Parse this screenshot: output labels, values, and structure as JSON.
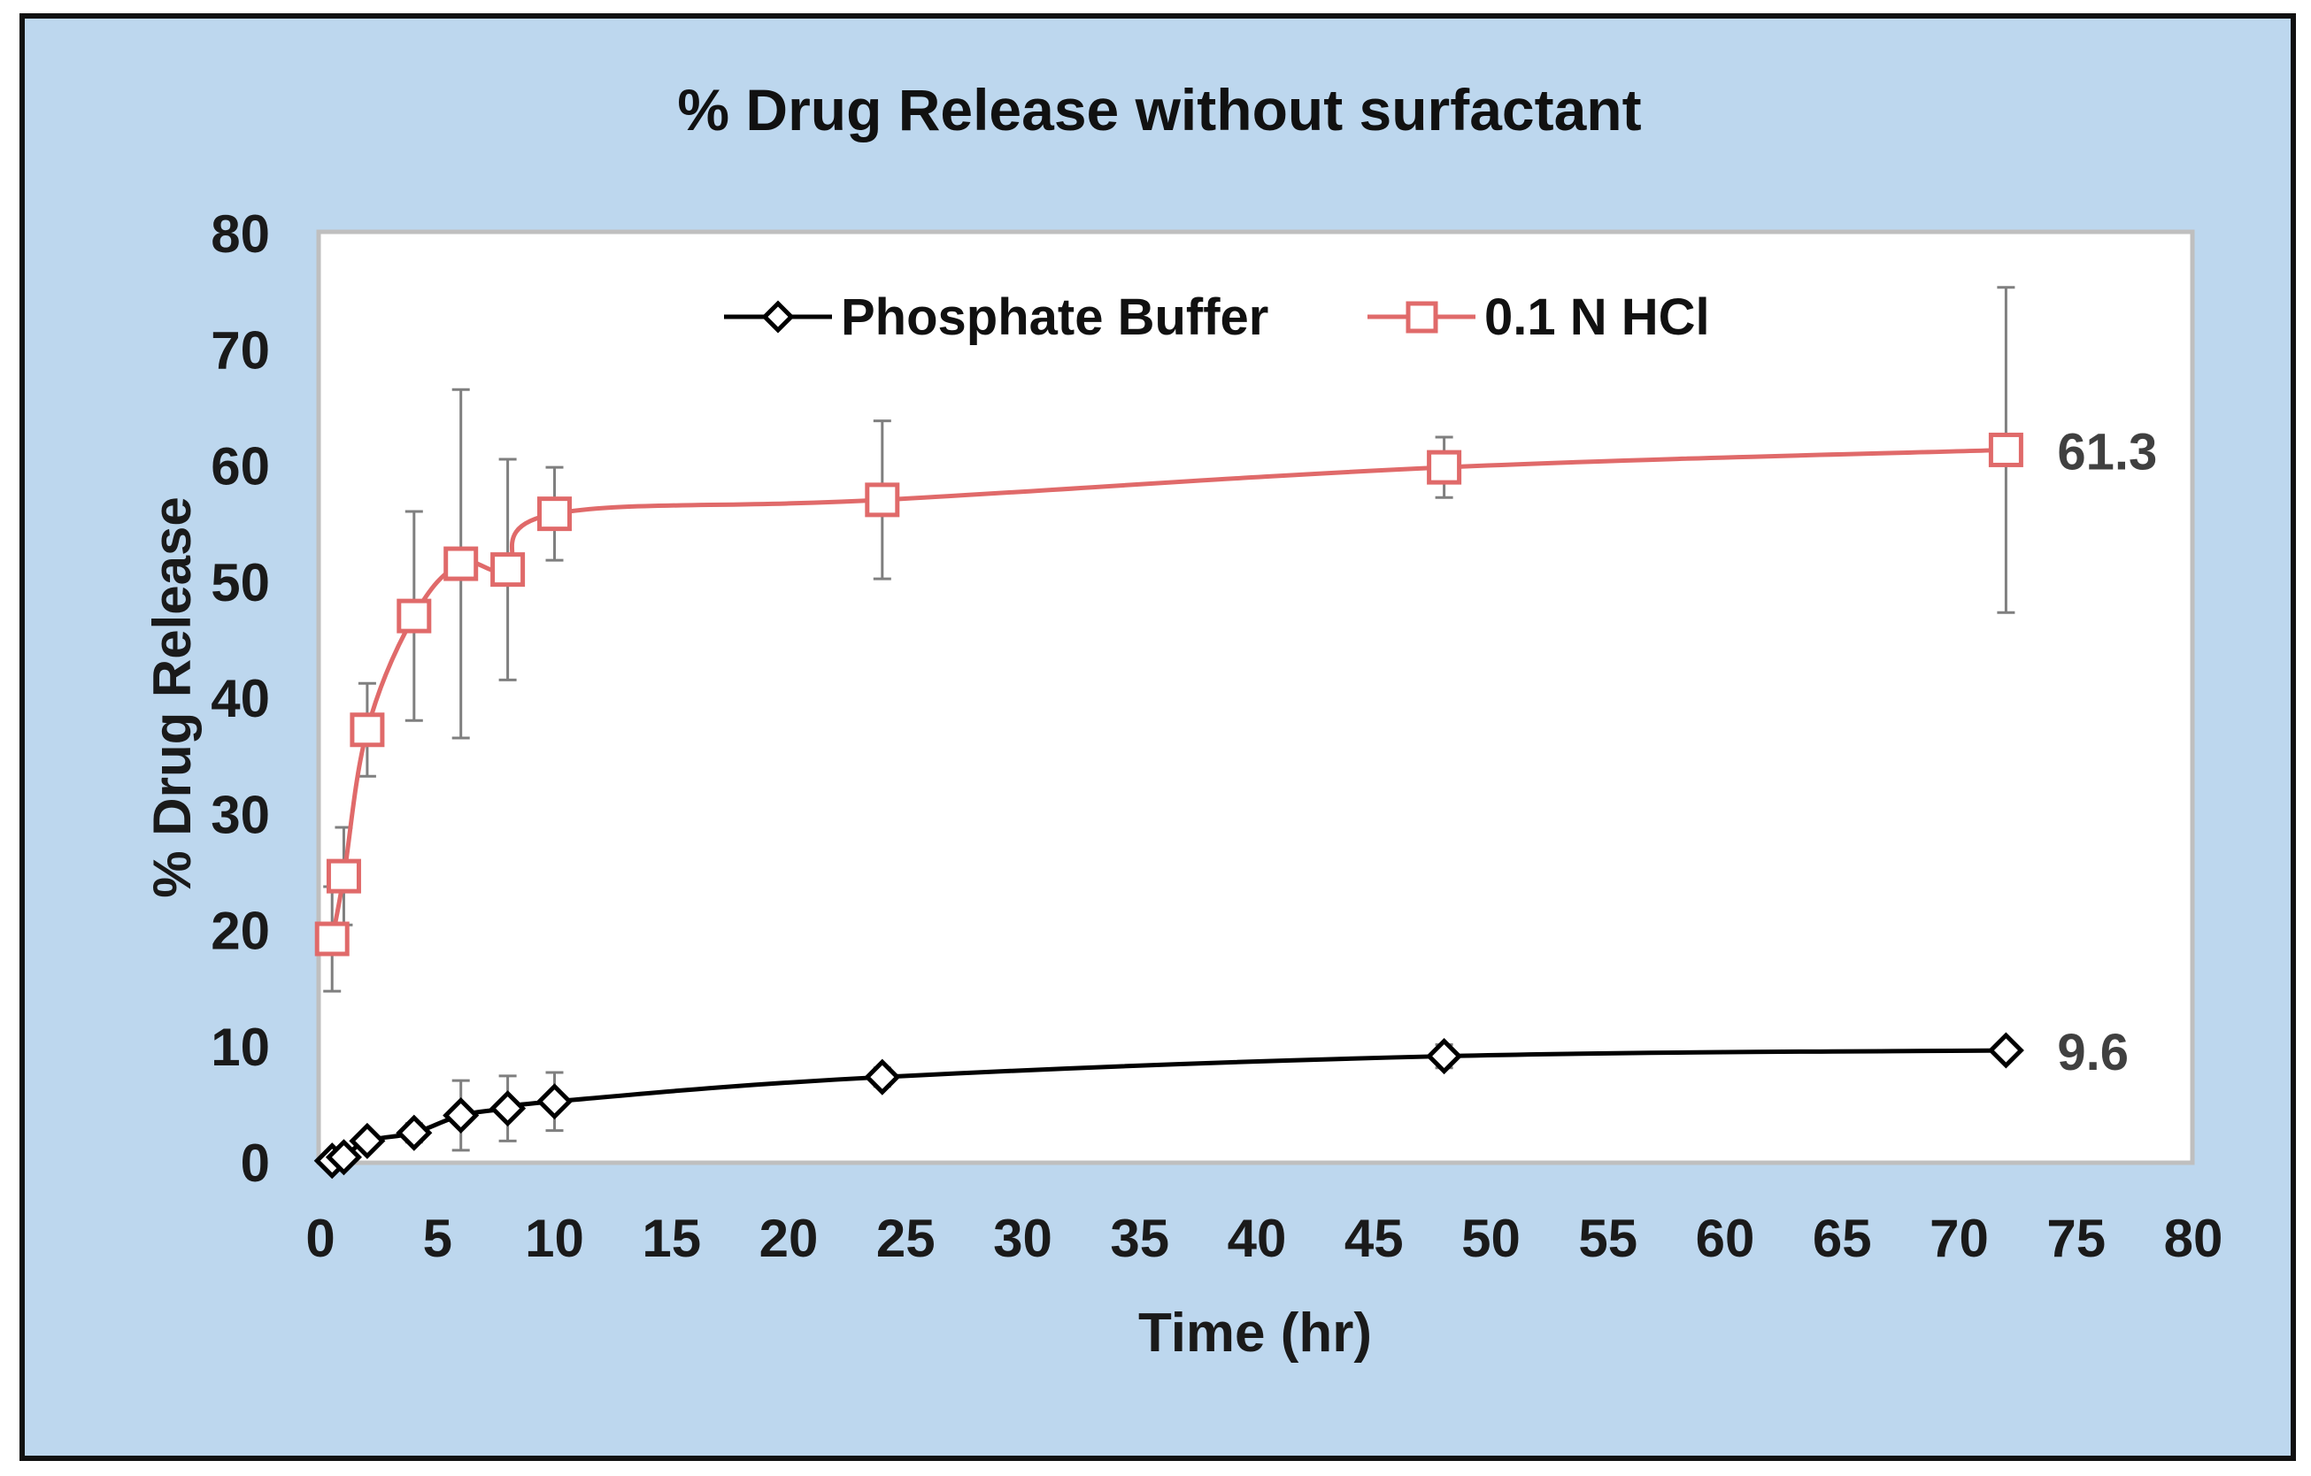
{
  "chart_data": {
    "type": "line",
    "title": "% Drug Release without surfactant",
    "xlabel": "Time (hr)",
    "ylabel": "% Drug Release",
    "xlim": [
      0,
      80
    ],
    "ylim": [
      0,
      80
    ],
    "xticks": [
      0,
      5,
      10,
      15,
      20,
      25,
      30,
      35,
      40,
      45,
      50,
      55,
      60,
      65,
      70,
      75,
      80
    ],
    "yticks": [
      0,
      10,
      20,
      30,
      40,
      50,
      60,
      70,
      80
    ],
    "grid": false,
    "legend_position": "top-center",
    "series": [
      {
        "name": "Phosphate Buffer",
        "marker": "diamond",
        "color": "#000000",
        "x": [
          0.5,
          1,
          2,
          4,
          6,
          8,
          10,
          24,
          48,
          72
        ],
        "y": [
          0.1,
          0.4,
          1.8,
          2.5,
          4.0,
          4.6,
          5.2,
          7.3,
          9.1,
          9.6
        ],
        "err": [
          0.2,
          0.3,
          0.5,
          0.8,
          3.0,
          2.8,
          2.5,
          0.8,
          1.0,
          0.6
        ],
        "end_label": "9.6"
      },
      {
        "name": "0.1 N HCl",
        "marker": "square",
        "color": "#e06a6a",
        "x": [
          0.5,
          1,
          2,
          4,
          6,
          8,
          10,
          24,
          48,
          72
        ],
        "y": [
          19.2,
          24.6,
          37.2,
          47.0,
          51.5,
          51.0,
          55.8,
          57.0,
          59.8,
          61.3
        ],
        "err": [
          4.5,
          4.2,
          4.0,
          9.0,
          15.0,
          9.5,
          4.0,
          6.8,
          2.6,
          14.0
        ],
        "end_label": "61.3"
      }
    ]
  },
  "colors": {
    "panel_background": "#bdd7ee",
    "plot_background": "#ffffff",
    "error_bar": "#7f7f7f"
  }
}
